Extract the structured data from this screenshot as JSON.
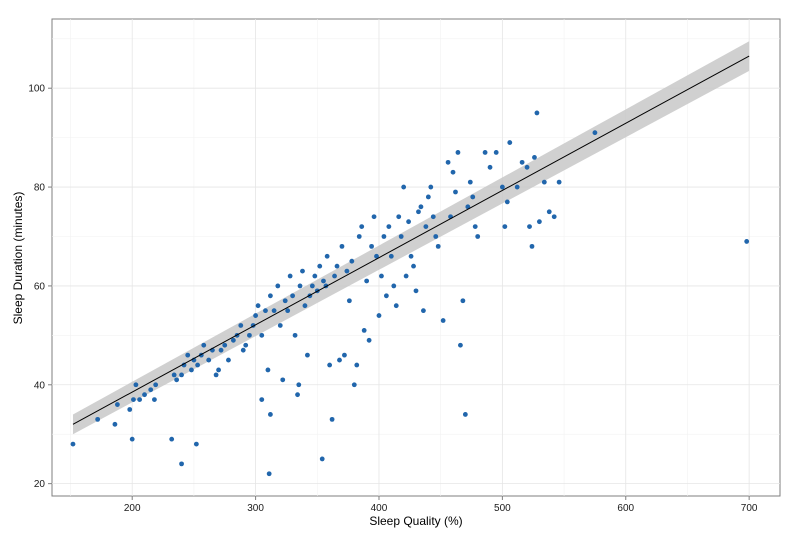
{
  "chart_data": {
    "type": "scatter",
    "xlabel": "Sleep Quality (%)",
    "ylabel": "Sleep Duration (minutes)",
    "xlim": [
      135,
      725
    ],
    "ylim": [
      17.5,
      114
    ],
    "x_ticks": [
      200,
      300,
      400,
      500,
      600,
      700
    ],
    "y_ticks": [
      20,
      40,
      60,
      80,
      100
    ],
    "grid": true,
    "legend": "none",
    "point_color": "#2166ac",
    "regression": {
      "x": [
        152,
        700
      ],
      "y": [
        32,
        106.5
      ],
      "ci_upper": [
        34,
        109.5
      ],
      "ci_lower": [
        30,
        103.5
      ],
      "line_color": "#000000",
      "band_color": "#c8c8c8"
    },
    "points": [
      [
        152,
        28
      ],
      [
        172,
        33
      ],
      [
        186,
        32
      ],
      [
        188,
        36
      ],
      [
        198,
        35
      ],
      [
        200,
        29
      ],
      [
        201,
        37
      ],
      [
        203,
        40
      ],
      [
        206,
        37
      ],
      [
        210,
        38
      ],
      [
        215,
        39
      ],
      [
        218,
        37
      ],
      [
        219,
        40
      ],
      [
        232,
        29
      ],
      [
        234,
        42
      ],
      [
        236,
        41
      ],
      [
        240,
        24
      ],
      [
        240,
        42
      ],
      [
        242,
        44
      ],
      [
        245,
        46
      ],
      [
        248,
        43
      ],
      [
        252,
        28
      ],
      [
        250,
        45
      ],
      [
        253,
        44
      ],
      [
        256,
        46
      ],
      [
        258,
        48
      ],
      [
        262,
        45
      ],
      [
        265,
        47
      ],
      [
        268,
        42
      ],
      [
        270,
        43
      ],
      [
        272,
        47
      ],
      [
        275,
        48
      ],
      [
        278,
        45
      ],
      [
        282,
        49
      ],
      [
        285,
        50
      ],
      [
        288,
        52
      ],
      [
        290,
        47
      ],
      [
        292,
        48
      ],
      [
        295,
        50
      ],
      [
        298,
        52
      ],
      [
        300,
        54
      ],
      [
        302,
        56
      ],
      [
        305,
        37
      ],
      [
        305,
        50
      ],
      [
        308,
        55
      ],
      [
        310,
        43
      ],
      [
        311,
        22
      ],
      [
        312,
        34
      ],
      [
        312,
        58
      ],
      [
        315,
        55
      ],
      [
        318,
        60
      ],
      [
        320,
        52
      ],
      [
        322,
        41
      ],
      [
        324,
        57
      ],
      [
        326,
        55
      ],
      [
        328,
        62
      ],
      [
        330,
        58
      ],
      [
        332,
        50
      ],
      [
        334,
        38
      ],
      [
        335,
        40
      ],
      [
        336,
        60
      ],
      [
        338,
        63
      ],
      [
        340,
        56
      ],
      [
        342,
        46
      ],
      [
        344,
        58
      ],
      [
        346,
        60
      ],
      [
        348,
        62
      ],
      [
        350,
        59
      ],
      [
        352,
        64
      ],
      [
        354,
        25
      ],
      [
        355,
        61
      ],
      [
        357,
        60
      ],
      [
        358,
        66
      ],
      [
        360,
        44
      ],
      [
        362,
        33
      ],
      [
        364,
        62
      ],
      [
        366,
        64
      ],
      [
        368,
        45
      ],
      [
        370,
        68
      ],
      [
        372,
        46
      ],
      [
        374,
        63
      ],
      [
        376,
        57
      ],
      [
        378,
        65
      ],
      [
        380,
        40
      ],
      [
        382,
        44
      ],
      [
        384,
        70
      ],
      [
        386,
        72
      ],
      [
        388,
        51
      ],
      [
        390,
        61
      ],
      [
        392,
        49
      ],
      [
        394,
        68
      ],
      [
        396,
        74
      ],
      [
        398,
        66
      ],
      [
        400,
        54
      ],
      [
        402,
        62
      ],
      [
        404,
        70
      ],
      [
        406,
        58
      ],
      [
        408,
        72
      ],
      [
        410,
        66
      ],
      [
        412,
        60
      ],
      [
        414,
        56
      ],
      [
        416,
        74
      ],
      [
        418,
        70
      ],
      [
        420,
        80
      ],
      [
        422,
        62
      ],
      [
        424,
        73
      ],
      [
        426,
        66
      ],
      [
        428,
        64
      ],
      [
        430,
        59
      ],
      [
        432,
        75
      ],
      [
        434,
        76
      ],
      [
        436,
        55
      ],
      [
        438,
        72
      ],
      [
        440,
        78
      ],
      [
        442,
        80
      ],
      [
        444,
        74
      ],
      [
        446,
        70
      ],
      [
        448,
        68
      ],
      [
        452,
        53
      ],
      [
        456,
        85
      ],
      [
        458,
        74
      ],
      [
        460,
        83
      ],
      [
        462,
        79
      ],
      [
        464,
        87
      ],
      [
        466,
        48
      ],
      [
        468,
        57
      ],
      [
        470,
        34
      ],
      [
        472,
        76
      ],
      [
        474,
        81
      ],
      [
        476,
        78
      ],
      [
        478,
        72
      ],
      [
        480,
        70
      ],
      [
        486,
        87
      ],
      [
        490,
        84
      ],
      [
        495,
        87
      ],
      [
        500,
        80
      ],
      [
        502,
        72
      ],
      [
        504,
        77
      ],
      [
        506,
        89
      ],
      [
        512,
        80
      ],
      [
        516,
        85
      ],
      [
        520,
        84
      ],
      [
        522,
        72
      ],
      [
        524,
        68
      ],
      [
        526,
        86
      ],
      [
        528,
        95
      ],
      [
        530,
        73
      ],
      [
        534,
        81
      ],
      [
        538,
        75
      ],
      [
        542,
        74
      ],
      [
        546,
        81
      ],
      [
        575,
        91
      ],
      [
        698,
        69
      ]
    ]
  }
}
